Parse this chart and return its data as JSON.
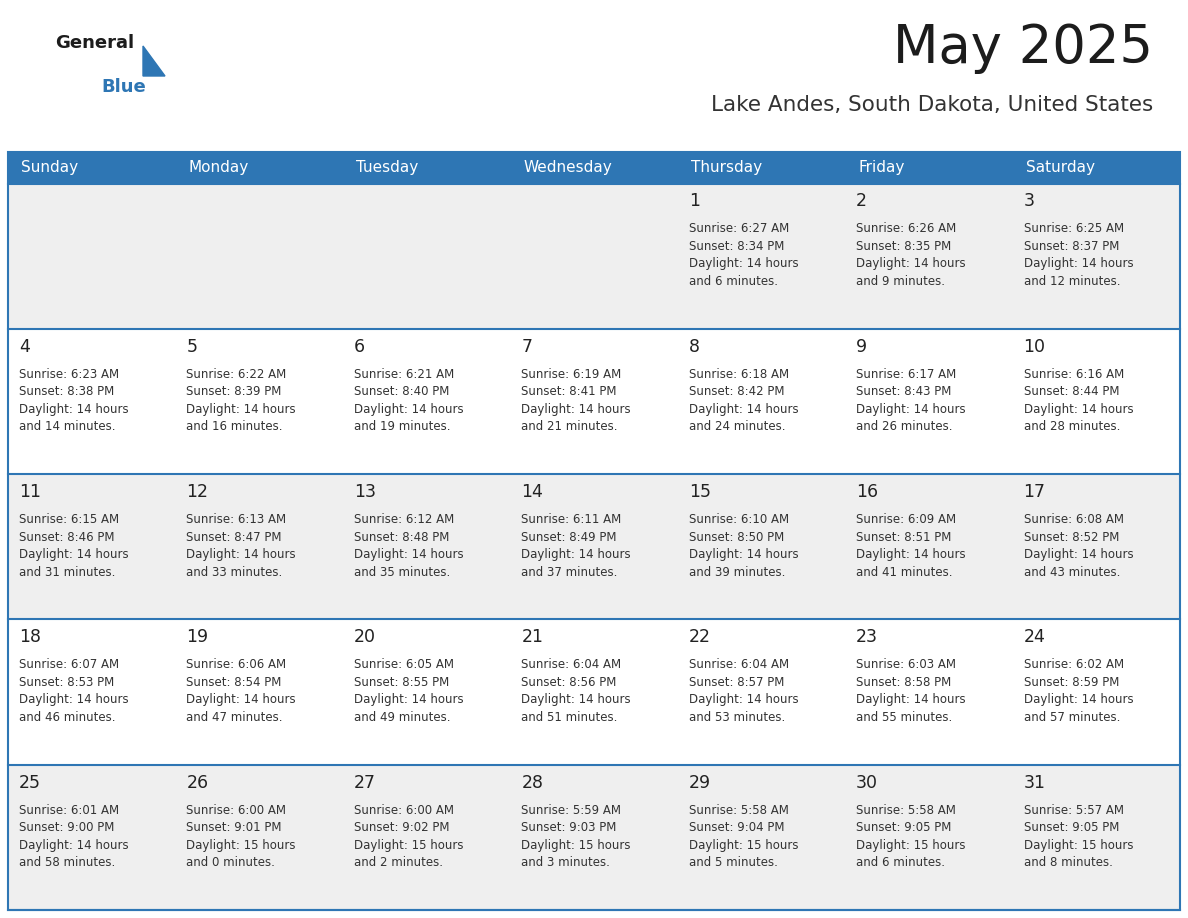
{
  "title": "May 2025",
  "subtitle": "Lake Andes, South Dakota, United States",
  "days_of_week": [
    "Sunday",
    "Monday",
    "Tuesday",
    "Wednesday",
    "Thursday",
    "Friday",
    "Saturday"
  ],
  "header_bg": "#2E76B4",
  "header_text": "#FFFFFF",
  "row_bg_even": "#EFEFEF",
  "row_bg_odd": "#FFFFFF",
  "separator_color": "#2E76B4",
  "day_number_color": "#222222",
  "cell_text_color": "#333333",
  "calendar_data": [
    [
      null,
      null,
      null,
      null,
      {
        "day": "1",
        "sunrise": "6:27 AM",
        "sunset": "8:34 PM",
        "daylight_h": "14 hours",
        "daylight_m": "and 6 minutes."
      },
      {
        "day": "2",
        "sunrise": "6:26 AM",
        "sunset": "8:35 PM",
        "daylight_h": "14 hours",
        "daylight_m": "and 9 minutes."
      },
      {
        "day": "3",
        "sunrise": "6:25 AM",
        "sunset": "8:37 PM",
        "daylight_h": "14 hours",
        "daylight_m": "and 12 minutes."
      }
    ],
    [
      {
        "day": "4",
        "sunrise": "6:23 AM",
        "sunset": "8:38 PM",
        "daylight_h": "14 hours",
        "daylight_m": "and 14 minutes."
      },
      {
        "day": "5",
        "sunrise": "6:22 AM",
        "sunset": "8:39 PM",
        "daylight_h": "14 hours",
        "daylight_m": "and 16 minutes."
      },
      {
        "day": "6",
        "sunrise": "6:21 AM",
        "sunset": "8:40 PM",
        "daylight_h": "14 hours",
        "daylight_m": "and 19 minutes."
      },
      {
        "day": "7",
        "sunrise": "6:19 AM",
        "sunset": "8:41 PM",
        "daylight_h": "14 hours",
        "daylight_m": "and 21 minutes."
      },
      {
        "day": "8",
        "sunrise": "6:18 AM",
        "sunset": "8:42 PM",
        "daylight_h": "14 hours",
        "daylight_m": "and 24 minutes."
      },
      {
        "day": "9",
        "sunrise": "6:17 AM",
        "sunset": "8:43 PM",
        "daylight_h": "14 hours",
        "daylight_m": "and 26 minutes."
      },
      {
        "day": "10",
        "sunrise": "6:16 AM",
        "sunset": "8:44 PM",
        "daylight_h": "14 hours",
        "daylight_m": "and 28 minutes."
      }
    ],
    [
      {
        "day": "11",
        "sunrise": "6:15 AM",
        "sunset": "8:46 PM",
        "daylight_h": "14 hours",
        "daylight_m": "and 31 minutes."
      },
      {
        "day": "12",
        "sunrise": "6:13 AM",
        "sunset": "8:47 PM",
        "daylight_h": "14 hours",
        "daylight_m": "and 33 minutes."
      },
      {
        "day": "13",
        "sunrise": "6:12 AM",
        "sunset": "8:48 PM",
        "daylight_h": "14 hours",
        "daylight_m": "and 35 minutes."
      },
      {
        "day": "14",
        "sunrise": "6:11 AM",
        "sunset": "8:49 PM",
        "daylight_h": "14 hours",
        "daylight_m": "and 37 minutes."
      },
      {
        "day": "15",
        "sunrise": "6:10 AM",
        "sunset": "8:50 PM",
        "daylight_h": "14 hours",
        "daylight_m": "and 39 minutes."
      },
      {
        "day": "16",
        "sunrise": "6:09 AM",
        "sunset": "8:51 PM",
        "daylight_h": "14 hours",
        "daylight_m": "and 41 minutes."
      },
      {
        "day": "17",
        "sunrise": "6:08 AM",
        "sunset": "8:52 PM",
        "daylight_h": "14 hours",
        "daylight_m": "and 43 minutes."
      }
    ],
    [
      {
        "day": "18",
        "sunrise": "6:07 AM",
        "sunset": "8:53 PM",
        "daylight_h": "14 hours",
        "daylight_m": "and 46 minutes."
      },
      {
        "day": "19",
        "sunrise": "6:06 AM",
        "sunset": "8:54 PM",
        "daylight_h": "14 hours",
        "daylight_m": "and 47 minutes."
      },
      {
        "day": "20",
        "sunrise": "6:05 AM",
        "sunset": "8:55 PM",
        "daylight_h": "14 hours",
        "daylight_m": "and 49 minutes."
      },
      {
        "day": "21",
        "sunrise": "6:04 AM",
        "sunset": "8:56 PM",
        "daylight_h": "14 hours",
        "daylight_m": "and 51 minutes."
      },
      {
        "day": "22",
        "sunrise": "6:04 AM",
        "sunset": "8:57 PM",
        "daylight_h": "14 hours",
        "daylight_m": "and 53 minutes."
      },
      {
        "day": "23",
        "sunrise": "6:03 AM",
        "sunset": "8:58 PM",
        "daylight_h": "14 hours",
        "daylight_m": "and 55 minutes."
      },
      {
        "day": "24",
        "sunrise": "6:02 AM",
        "sunset": "8:59 PM",
        "daylight_h": "14 hours",
        "daylight_m": "and 57 minutes."
      }
    ],
    [
      {
        "day": "25",
        "sunrise": "6:01 AM",
        "sunset": "9:00 PM",
        "daylight_h": "14 hours",
        "daylight_m": "and 58 minutes."
      },
      {
        "day": "26",
        "sunrise": "6:00 AM",
        "sunset": "9:01 PM",
        "daylight_h": "15 hours",
        "daylight_m": "and 0 minutes."
      },
      {
        "day": "27",
        "sunrise": "6:00 AM",
        "sunset": "9:02 PM",
        "daylight_h": "15 hours",
        "daylight_m": "and 2 minutes."
      },
      {
        "day": "28",
        "sunrise": "5:59 AM",
        "sunset": "9:03 PM",
        "daylight_h": "15 hours",
        "daylight_m": "and 3 minutes."
      },
      {
        "day": "29",
        "sunrise": "5:58 AM",
        "sunset": "9:04 PM",
        "daylight_h": "15 hours",
        "daylight_m": "and 5 minutes."
      },
      {
        "day": "30",
        "sunrise": "5:58 AM",
        "sunset": "9:05 PM",
        "daylight_h": "15 hours",
        "daylight_m": "and 6 minutes."
      },
      {
        "day": "31",
        "sunrise": "5:57 AM",
        "sunset": "9:05 PM",
        "daylight_h": "15 hours",
        "daylight_m": "and 8 minutes."
      }
    ]
  ]
}
